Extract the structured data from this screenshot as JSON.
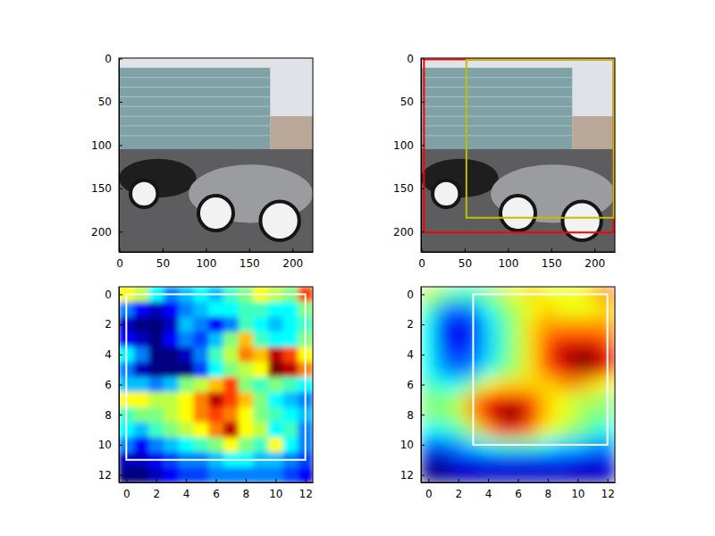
{
  "chart_data": [
    {
      "type": "image",
      "xlim": [
        -0.5,
        223.5
      ],
      "ylim": [
        223.5,
        -0.5
      ],
      "xticks": [
        0,
        50,
        100,
        150,
        200
      ],
      "yticks": [
        0,
        50,
        100,
        150,
        200
      ]
    },
    {
      "type": "image",
      "xlim": [
        -0.5,
        223.5
      ],
      "ylim": [
        223.5,
        -0.5
      ],
      "xticks": [
        0,
        50,
        100,
        150,
        200
      ],
      "yticks": [
        0,
        50,
        100,
        150,
        200
      ],
      "boxes": [
        {
          "x": [
            3,
            222
          ],
          "y": [
            1,
            201
          ],
          "color": "#ff0000"
        },
        {
          "x": [
            52,
            222
          ],
          "y": [
            1,
            184
          ],
          "color": "#bfbf00"
        }
      ]
    },
    {
      "type": "heatmap",
      "xlim": [
        -0.5,
        12.5
      ],
      "ylim": [
        12.5,
        -0.5
      ],
      "xticks": [
        0,
        2,
        4,
        6,
        8,
        10,
        12
      ],
      "yticks": [
        0,
        2,
        4,
        6,
        8,
        10,
        12
      ],
      "cells": [
        [
          0.6,
          0.55,
          0.4,
          0.3,
          0.35,
          0.4,
          0.35,
          0.45,
          0.5,
          0.6,
          0.55,
          0.5,
          0.75
        ],
        [
          0.3,
          0.2,
          0.15,
          0.2,
          0.3,
          0.35,
          0.4,
          0.4,
          0.45,
          0.45,
          0.4,
          0.4,
          0.5
        ],
        [
          0.15,
          0.1,
          0.1,
          0.15,
          0.35,
          0.3,
          0.2,
          0.3,
          0.45,
          0.4,
          0.35,
          0.4,
          0.45
        ],
        [
          0.2,
          0.15,
          0.1,
          0.2,
          0.3,
          0.25,
          0.35,
          0.5,
          0.65,
          0.45,
          0.4,
          0.4,
          0.5
        ],
        [
          0.4,
          0.3,
          0.1,
          0.1,
          0.15,
          0.3,
          0.45,
          0.55,
          0.7,
          0.65,
          0.85,
          0.75,
          0.6
        ],
        [
          0.3,
          0.15,
          0.1,
          0.1,
          0.1,
          0.25,
          0.4,
          0.5,
          0.55,
          0.6,
          0.9,
          0.85,
          0.7
        ],
        [
          0.35,
          0.35,
          0.3,
          0.35,
          0.5,
          0.55,
          0.65,
          0.75,
          0.5,
          0.45,
          0.5,
          0.45,
          0.4
        ],
        [
          0.6,
          0.6,
          0.55,
          0.55,
          0.6,
          0.7,
          0.85,
          0.75,
          0.65,
          0.5,
          0.4,
          0.35,
          0.3
        ],
        [
          0.45,
          0.5,
          0.5,
          0.55,
          0.6,
          0.7,
          0.75,
          0.7,
          0.6,
          0.5,
          0.45,
          0.4,
          0.35
        ],
        [
          0.4,
          0.35,
          0.45,
          0.5,
          0.55,
          0.6,
          0.7,
          0.85,
          0.6,
          0.55,
          0.4,
          0.45,
          0.3
        ],
        [
          0.3,
          0.2,
          0.3,
          0.35,
          0.4,
          0.45,
          0.5,
          0.6,
          0.5,
          0.45,
          0.6,
          0.4,
          0.3
        ],
        [
          0.15,
          0.15,
          0.2,
          0.25,
          0.3,
          0.3,
          0.35,
          0.4,
          0.4,
          0.35,
          0.35,
          0.3,
          0.25
        ],
        [
          0.1,
          0.1,
          0.15,
          0.2,
          0.25,
          0.25,
          0.3,
          0.3,
          0.3,
          0.3,
          0.3,
          0.25,
          0.2
        ]
      ],
      "boxes": [
        {
          "x": [
            0,
            12
          ],
          "y": [
            0,
            11
          ],
          "color": "#ffffff"
        }
      ]
    },
    {
      "type": "heatmap",
      "xlim": [
        -0.5,
        12.5
      ],
      "ylim": [
        12.5,
        -0.5
      ],
      "xticks": [
        0,
        2,
        4,
        6,
        8,
        10,
        12
      ],
      "yticks": [
        0,
        2,
        4,
        6,
        8,
        10,
        12
      ],
      "cells": [
        [
          0.55,
          0.5,
          0.45,
          0.45,
          0.5,
          0.55,
          0.6,
          0.65,
          0.6,
          0.6,
          0.6,
          0.65,
          0.75
        ],
        [
          0.45,
          0.3,
          0.25,
          0.3,
          0.4,
          0.5,
          0.55,
          0.6,
          0.65,
          0.6,
          0.6,
          0.6,
          0.65
        ],
        [
          0.4,
          0.2,
          0.15,
          0.2,
          0.35,
          0.45,
          0.55,
          0.65,
          0.7,
          0.7,
          0.7,
          0.7,
          0.7
        ],
        [
          0.4,
          0.2,
          0.15,
          0.2,
          0.35,
          0.45,
          0.55,
          0.65,
          0.75,
          0.8,
          0.8,
          0.8,
          0.75
        ],
        [
          0.4,
          0.25,
          0.2,
          0.25,
          0.35,
          0.45,
          0.55,
          0.65,
          0.8,
          0.9,
          0.95,
          0.95,
          0.85
        ],
        [
          0.4,
          0.3,
          0.25,
          0.3,
          0.4,
          0.5,
          0.55,
          0.65,
          0.75,
          0.85,
          0.9,
          0.9,
          0.8
        ],
        [
          0.45,
          0.4,
          0.4,
          0.5,
          0.6,
          0.65,
          0.65,
          0.65,
          0.65,
          0.7,
          0.7,
          0.65,
          0.6
        ],
        [
          0.5,
          0.5,
          0.55,
          0.7,
          0.8,
          0.85,
          0.85,
          0.75,
          0.65,
          0.6,
          0.55,
          0.55,
          0.5
        ],
        [
          0.5,
          0.5,
          0.55,
          0.7,
          0.85,
          0.95,
          0.95,
          0.8,
          0.65,
          0.6,
          0.55,
          0.5,
          0.5
        ],
        [
          0.4,
          0.4,
          0.45,
          0.55,
          0.7,
          0.8,
          0.8,
          0.7,
          0.6,
          0.55,
          0.5,
          0.45,
          0.4
        ],
        [
          0.25,
          0.25,
          0.3,
          0.35,
          0.4,
          0.45,
          0.45,
          0.45,
          0.4,
          0.35,
          0.35,
          0.3,
          0.3
        ],
        [
          0.1,
          0.1,
          0.15,
          0.15,
          0.2,
          0.2,
          0.2,
          0.2,
          0.2,
          0.2,
          0.15,
          0.15,
          0.15
        ],
        [
          0.05,
          0.05,
          0.1,
          0.1,
          0.1,
          0.1,
          0.1,
          0.1,
          0.1,
          0.1,
          0.1,
          0.1,
          0.1
        ]
      ],
      "boxes": [
        {
          "x": [
            3,
            12
          ],
          "y": [
            0,
            10
          ],
          "color": "#ffffff"
        }
      ]
    }
  ]
}
